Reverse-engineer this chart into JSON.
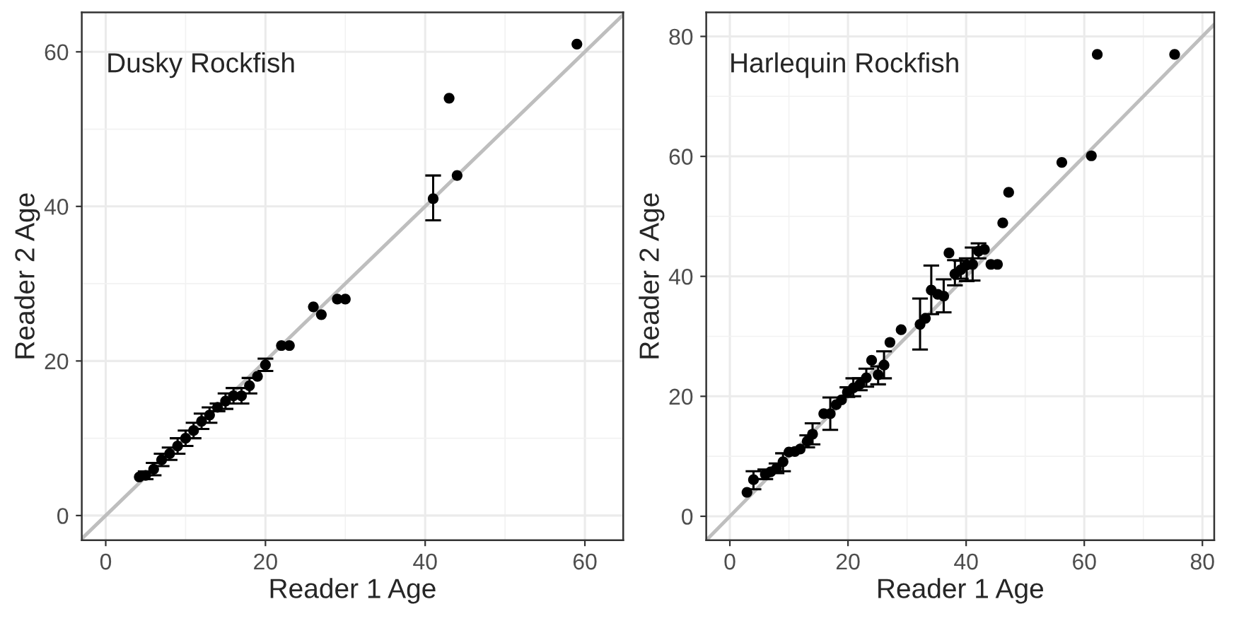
{
  "chart_data": [
    {
      "type": "scatter",
      "xlabel": "Reader 1 Age",
      "ylabel": "Reader 2 Age",
      "annotations": [
        "Dusky Rockfish"
      ],
      "xlim": [
        -3,
        64.8
      ],
      "ylim": [
        -3.2,
        65.1
      ],
      "xticks": [
        0,
        20,
        40,
        60
      ],
      "yticks": [
        0,
        20,
        40,
        60
      ],
      "grid": true,
      "series": [
        {
          "type": "line",
          "color": "#bebebe",
          "x": [
            -3,
            64.8
          ],
          "values": [
            -3,
            64.8
          ]
        },
        {
          "marker": "circle",
          "color": "#000000",
          "x": [
            4.2,
            5,
            6,
            7,
            8,
            9,
            10,
            11,
            12,
            13,
            14,
            15,
            16,
            17,
            18,
            19,
            20,
            22,
            23,
            26,
            27,
            29,
            30,
            41,
            43,
            44,
            59
          ],
          "values": [
            5,
            5.2,
            6,
            7.2,
            8,
            9,
            10,
            11,
            12.2,
            13,
            14,
            14.8,
            15.5,
            15.5,
            16.8,
            18,
            19.5,
            22,
            22,
            27,
            26,
            28,
            28,
            41,
            54,
            44,
            61
          ],
          "errors": [
            null,
            0.5,
            0.8,
            0.8,
            0.8,
            1,
            1,
            1,
            1,
            1,
            0.5,
            1,
            1,
            1,
            1,
            null,
            0.8,
            null,
            null,
            null,
            null,
            null,
            null,
            [
              38.2,
              44
            ],
            null,
            null,
            null
          ]
        }
      ]
    },
    {
      "type": "scatter",
      "xlabel": "Reader 1 Age",
      "ylabel": "Reader 2 Age",
      "annotations": [
        "Harlequin Rockfish"
      ],
      "xlim": [
        -4,
        82
      ],
      "ylim": [
        -4,
        84
      ],
      "xticks": [
        0,
        20,
        40,
        60,
        80
      ],
      "yticks": [
        0,
        20,
        40,
        60,
        80
      ],
      "grid": true,
      "series": [
        {
          "type": "line",
          "color": "#bebebe",
          "x": [
            -4,
            82
          ],
          "values": [
            -4,
            82
          ]
        },
        {
          "marker": "circle",
          "color": "#000000",
          "x": [
            2.9,
            4,
            6,
            6.9,
            7.9,
            9,
            10,
            11,
            11.9,
            13.1,
            14,
            15.9,
            17,
            18,
            18.9,
            19.9,
            20.9,
            22,
            23.1,
            24,
            25.1,
            26.1,
            27.1,
            29,
            32.2,
            33.1,
            34.1,
            35.2,
            36.2,
            37.1,
            38.1,
            39.1,
            40.1,
            41.1,
            42.1,
            43.1,
            44.2,
            45.3,
            46.2,
            47.2,
            56.2,
            61.2,
            62.2,
            75.3
          ],
          "values": [
            4,
            6.1,
            7,
            7.4,
            8,
            9.1,
            10.7,
            10.8,
            11.2,
            12.5,
            13.7,
            17.1,
            17.1,
            18.6,
            19.4,
            20.7,
            21.4,
            22,
            23.1,
            26,
            23.6,
            25.2,
            29,
            31.1,
            32,
            33,
            37.7,
            37,
            36.7,
            43.9,
            40.4,
            41.1,
            41.9,
            42,
            44.2,
            44.5,
            42,
            42,
            48.9,
            54,
            59,
            60.1,
            77,
            77
          ],
          "errors": [
            null,
            [
              4.5,
              7.5
            ],
            0.8,
            null,
            0.8,
            [
              7.5,
              10.5
            ],
            null,
            null,
            null,
            1,
            [
              12,
              15.5
            ],
            null,
            [
              14.4,
              19.8
            ],
            null,
            null,
            0.8,
            [
              20,
              23
            ],
            1,
            1.5,
            null,
            [
              22,
              25
            ],
            [
              23,
              27.5
            ],
            null,
            null,
            [
              27.8,
              36.3
            ],
            null,
            [
              33.7,
              41.8
            ],
            null,
            [
              34,
              39.5
            ],
            null,
            [
              38.5,
              42.7
            ],
            1.5,
            [
              39.2,
              43
            ],
            [
              39.3,
              44.8
            ],
            [
              43,
              45.5
            ],
            null,
            null,
            null,
            null,
            null,
            null,
            null,
            null,
            null
          ]
        }
      ]
    }
  ]
}
